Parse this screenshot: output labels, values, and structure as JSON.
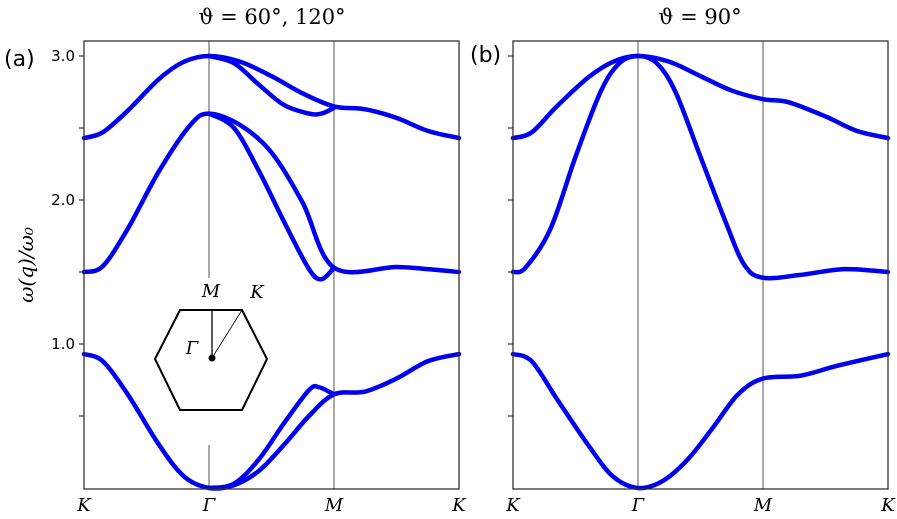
{
  "chart_data": [
    {
      "type": "line",
      "panel_label": "(a)",
      "title": "ϑ = 60°, 120°",
      "ylabel": "ω(q)/ω₀",
      "ylabel_main": "ω(",
      "ylabel_bold": "q",
      "ylabel_tail": ")/ω",
      "ylabel_sub": "0",
      "x_tick_labels": [
        "K",
        "Γ",
        "M",
        "K"
      ],
      "y_tick_labels": [
        {
          "value": 3.0,
          "label": "3.0"
        },
        {
          "value": 2.0,
          "label": "2.0"
        },
        {
          "value": 1.0,
          "label": "1.0"
        }
      ],
      "y_minor_ticks": [
        0.5,
        1.5,
        2.5
      ],
      "ylim": [
        0,
        3.1
      ],
      "xlim": [
        0,
        3
      ],
      "line_color": "#0000ee",
      "inset": {
        "type": "hexagonal Brillouin zone",
        "labels": {
          "M": "M",
          "K": "K",
          "Gamma": "Γ"
        }
      },
      "series": [
        {
          "points": [
            [
              0,
              2.43
            ],
            [
              0.15,
              2.47
            ],
            [
              0.35,
              2.62
            ],
            [
              0.6,
              2.84
            ],
            [
              0.8,
              2.96
            ],
            [
              1,
              3.0
            ],
            [
              1.25,
              2.96
            ],
            [
              1.5,
              2.86
            ],
            [
              1.75,
              2.74
            ],
            [
              2,
              2.65
            ],
            [
              2.25,
              2.63
            ],
            [
              2.5,
              2.57
            ],
            [
              2.75,
              2.48
            ],
            [
              3,
              2.43
            ]
          ]
        },
        {
          "points": [
            [
              1,
              3.0
            ],
            [
              1.2,
              2.95
            ],
            [
              1.4,
              2.8
            ],
            [
              1.6,
              2.66
            ],
            [
              1.8,
              2.6
            ],
            [
              1.9,
              2.6
            ],
            [
              2,
              2.64
            ]
          ]
        },
        {
          "points": [
            [
              0,
              1.5
            ],
            [
              0.15,
              1.54
            ],
            [
              0.35,
              1.8
            ],
            [
              0.6,
              2.2
            ],
            [
              0.85,
              2.52
            ],
            [
              1,
              2.6
            ],
            [
              1.25,
              2.52
            ],
            [
              1.5,
              2.33
            ],
            [
              1.75,
              1.98
            ],
            [
              2,
              1.53
            ],
            [
              2.5,
              1.535
            ],
            [
              2.75,
              1.52
            ],
            [
              3,
              1.5
            ]
          ]
        },
        {
          "points": [
            [
              1,
              2.6
            ],
            [
              1.2,
              2.5
            ],
            [
              1.4,
              2.2
            ],
            [
              1.6,
              1.85
            ],
            [
              1.8,
              1.52
            ],
            [
              1.9,
              1.45
            ],
            [
              2,
              1.53
            ]
          ]
        },
        {
          "points": [
            [
              0,
              0.93
            ],
            [
              0.15,
              0.88
            ],
            [
              0.35,
              0.65
            ],
            [
              0.6,
              0.3
            ],
            [
              0.8,
              0.08
            ],
            [
              1,
              0
            ],
            [
              1.2,
              0.02
            ],
            [
              1.4,
              0.12
            ],
            [
              1.6,
              0.3
            ],
            [
              1.8,
              0.5
            ],
            [
              2,
              0.65
            ],
            [
              2.25,
              0.67
            ],
            [
              2.5,
              0.76
            ],
            [
              2.75,
              0.88
            ],
            [
              3,
              0.93
            ]
          ]
        },
        {
          "points": [
            [
              1,
              0
            ],
            [
              1.2,
              0.03
            ],
            [
              1.4,
              0.2
            ],
            [
              1.6,
              0.45
            ],
            [
              1.8,
              0.68
            ],
            [
              1.88,
              0.7
            ],
            [
              2,
              0.65
            ]
          ]
        }
      ]
    },
    {
      "type": "line",
      "panel_label": "(b)",
      "title": "ϑ = 90°",
      "x_tick_labels": [
        "K",
        "Γ",
        "M",
        "K"
      ],
      "y_minor_ticks": [
        0.5,
        1.0,
        1.5,
        2.0,
        2.5,
        3.0
      ],
      "ylim": [
        0,
        3.1
      ],
      "xlim": [
        0,
        3
      ],
      "line_color": "#0000ee",
      "series": [
        {
          "points": [
            [
              0,
              2.43
            ],
            [
              0.15,
              2.47
            ],
            [
              0.35,
              2.65
            ],
            [
              0.6,
              2.85
            ],
            [
              0.8,
              2.96
            ],
            [
              1,
              3.0
            ],
            [
              1.25,
              2.96
            ],
            [
              1.5,
              2.86
            ],
            [
              1.75,
              2.76
            ],
            [
              2,
              2.7
            ],
            [
              2.2,
              2.68
            ],
            [
              2.5,
              2.58
            ],
            [
              2.75,
              2.48
            ],
            [
              3,
              2.43
            ]
          ]
        },
        {
          "points": [
            [
              0,
              1.5
            ],
            [
              0.1,
              1.53
            ],
            [
              0.3,
              1.8
            ],
            [
              0.5,
              2.3
            ],
            [
              0.7,
              2.75
            ],
            [
              0.85,
              2.95
            ],
            [
              1,
              3.0
            ],
            [
              1.15,
              2.95
            ],
            [
              1.3,
              2.75
            ],
            [
              1.5,
              2.3
            ],
            [
              1.7,
              1.85
            ],
            [
              1.85,
              1.55
            ],
            [
              2,
              1.46
            ],
            [
              2.3,
              1.48
            ],
            [
              2.65,
              1.52
            ],
            [
              3,
              1.5
            ]
          ]
        },
        {
          "points": [
            [
              0,
              0.93
            ],
            [
              0.15,
              0.88
            ],
            [
              0.35,
              0.62
            ],
            [
              0.6,
              0.3
            ],
            [
              0.8,
              0.08
            ],
            [
              1,
              0
            ],
            [
              1.2,
              0.05
            ],
            [
              1.4,
              0.2
            ],
            [
              1.6,
              0.42
            ],
            [
              1.8,
              0.65
            ],
            [
              2,
              0.76
            ],
            [
              2.3,
              0.78
            ],
            [
              2.6,
              0.85
            ],
            [
              3,
              0.93
            ]
          ]
        }
      ]
    }
  ]
}
